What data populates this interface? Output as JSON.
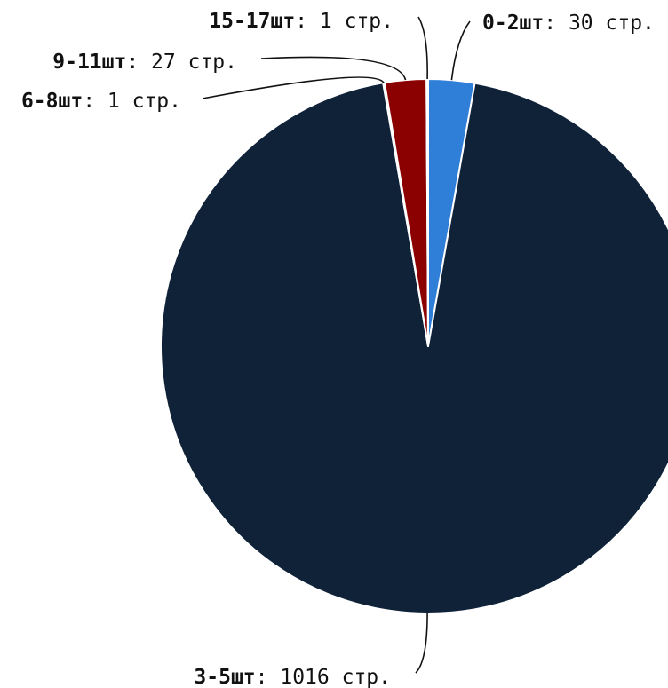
{
  "chart_data": {
    "type": "pie",
    "unit_suffix": "стр.",
    "slices": [
      {
        "category": "0-2шт",
        "value": 30,
        "color": "#2f7fd8"
      },
      {
        "category": "3-5шт",
        "value": 1016,
        "color": "#0f2238"
      },
      {
        "category": "6-8шт",
        "value": 1,
        "color": "#2f7fd8"
      },
      {
        "category": "9-11шт",
        "value": 27,
        "color": "#8b0000"
      },
      {
        "category": "15-17шт",
        "value": 1,
        "color": "#0f2238"
      }
    ]
  }
}
